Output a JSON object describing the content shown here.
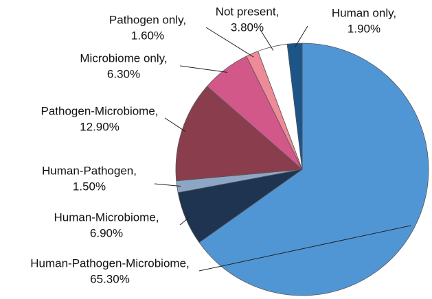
{
  "chart_data": {
    "type": "pie",
    "categories": [
      "Human-Pathogen-Microbiome,",
      "Human-Microbiome,",
      "Human-Pathogen,",
      "Pathogen-Microbiome,",
      "Microbiome only,",
      "Pathogen only,",
      "Not present,",
      "Human only,"
    ],
    "values": [
      65.3,
      6.9,
      1.5,
      12.9,
      6.3,
      1.6,
      3.8,
      1.9
    ],
    "value_labels": [
      "65.30%",
      "6.90%",
      "1.50%",
      "12.90%",
      "6.30%",
      "1.60%",
      "3.80%",
      "1.90%"
    ],
    "colors": [
      "#5196d4",
      "#1e3450",
      "#8ea6c6",
      "#8a3e4d",
      "#d2588a",
      "#ef8a98",
      "#ffffff",
      "#1d5589"
    ]
  }
}
